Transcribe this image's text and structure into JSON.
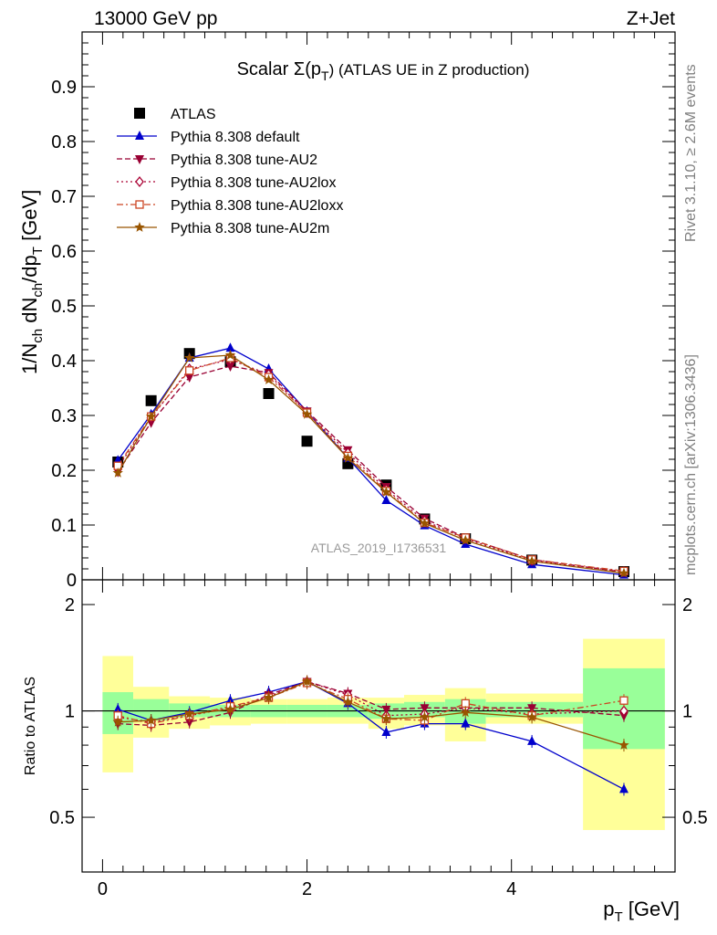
{
  "header": {
    "left": "13000 GeV pp",
    "right": "Z+Jet"
  },
  "side_labels": {
    "rivet": "Rivet 3.1.10, ≥ 2.6M events",
    "mcplots": "mcplots.cern.ch [arXiv:1306.3436]"
  },
  "chart_data": [
    {
      "type": "scatter",
      "title_prefix": "Scalar Σ(p",
      "title_sub": "T",
      "title_suffix": ") (ATLAS UE in Z production)",
      "ylabel": {
        "main": "1/N",
        "sub1": "ch",
        "mid": " dN",
        "sub2": "ch",
        "end": "/dp",
        "sub3": "T",
        "unit": " [GeV]"
      },
      "watermark": "ATLAS_2019_I1736531",
      "xlim": [
        -0.2,
        5.6
      ],
      "ylim": [
        0,
        1.0
      ],
      "yticks": [
        "0",
        "0.1",
        "0.2",
        "0.3",
        "0.4",
        "0.5",
        "0.6",
        "0.7",
        "0.8",
        "0.9",
        "1"
      ],
      "legend_position": "top-left",
      "x": [
        0.15,
        0.475,
        0.85,
        1.25,
        1.625,
        2.0,
        2.4,
        2.775,
        3.15,
        3.55,
        4.2,
        5.1
      ],
      "series": [
        {
          "name": "ATLAS",
          "style": "data",
          "color": "#000000",
          "values": [
            0.215,
            0.327,
            0.413,
            0.398,
            0.34,
            0.253,
            0.212,
            0.173,
            0.111,
            0.075,
            0.036,
            0.015
          ]
        },
        {
          "name": "Pythia 8.308 default",
          "style": "line",
          "color": "#0000cc",
          "marker": "triangle-up",
          "values": [
            0.218,
            0.302,
            0.405,
            0.423,
            0.385,
            0.307,
            0.222,
            0.145,
            0.099,
            0.065,
            0.028,
            0.009
          ]
        },
        {
          "name": "Pythia 8.308 tune-AU2",
          "style": "dashed",
          "color": "#990033",
          "marker": "triangle-down",
          "values": [
            0.197,
            0.287,
            0.37,
            0.39,
            0.378,
            0.308,
            0.237,
            0.17,
            0.112,
            0.077,
            0.037,
            0.014
          ]
        },
        {
          "name": "Pythia 8.308 tune-AU2lox",
          "style": "dotted",
          "color": "#aa0033",
          "marker": "diamond-open",
          "values": [
            0.205,
            0.296,
            0.385,
            0.402,
            0.375,
            0.305,
            0.232,
            0.165,
            0.108,
            0.075,
            0.035,
            0.015
          ]
        },
        {
          "name": "Pythia 8.308 tune-AU2loxx",
          "style": "dashdot",
          "color": "#cc4422",
          "marker": "square-open",
          "values": [
            0.208,
            0.298,
            0.382,
            0.405,
            0.37,
            0.305,
            0.226,
            0.162,
            0.104,
            0.077,
            0.037,
            0.016
          ]
        },
        {
          "name": "Pythia 8.308 tune-AU2m",
          "style": "line",
          "color": "#995500",
          "marker": "star",
          "values": [
            0.195,
            0.298,
            0.405,
            0.41,
            0.365,
            0.302,
            0.222,
            0.16,
            0.103,
            0.072,
            0.034,
            0.012
          ]
        }
      ]
    },
    {
      "type": "scatter",
      "ylabel": "Ratio to ATLAS",
      "xlabel_main": "p",
      "xlabel_sub": "T",
      "xlabel_unit": " [GeV]",
      "xlim": [
        -0.2,
        5.6
      ],
      "ylim": [
        0.35,
        2.35
      ],
      "yticks": [
        "0.5",
        "1",
        "2"
      ],
      "xticks": [
        "0",
        "2",
        "4"
      ],
      "bands": {
        "bin_edges": [
          0.0,
          0.3,
          0.65,
          1.05,
          1.45,
          1.8,
          2.2,
          2.6,
          2.95,
          3.35,
          3.75,
          4.7,
          5.5
        ],
        "yellow_lo": [
          0.67,
          0.84,
          0.89,
          0.91,
          0.92,
          0.92,
          0.92,
          0.89,
          0.91,
          0.82,
          0.92,
          0.46
        ],
        "yellow_hi": [
          1.43,
          1.17,
          1.1,
          1.09,
          1.08,
          1.08,
          1.09,
          1.09,
          1.11,
          1.16,
          1.12,
          1.6
        ],
        "green_lo": [
          0.86,
          0.94,
          0.96,
          0.96,
          0.96,
          0.96,
          0.96,
          0.95,
          0.96,
          0.92,
          0.96,
          0.78
        ],
        "green_hi": [
          1.13,
          1.08,
          1.05,
          1.04,
          1.04,
          1.04,
          1.04,
          1.05,
          1.06,
          1.08,
          1.06,
          1.32
        ]
      },
      "x": [
        0.15,
        0.475,
        0.85,
        1.25,
        1.625,
        2.0,
        2.4,
        2.775,
        3.15,
        3.55,
        4.2,
        5.1
      ],
      "series": [
        {
          "name": "Pythia 8.308 default",
          "style": "line",
          "color": "#0000cc",
          "marker": "triangle-up",
          "values": [
            1.01,
            0.94,
            0.99,
            1.07,
            1.13,
            1.21,
            1.05,
            0.87,
            0.92,
            0.92,
            0.82,
            0.6
          ]
        },
        {
          "name": "Pythia 8.308 tune-AU2",
          "style": "dashed",
          "color": "#990033",
          "marker": "triangle-down",
          "values": [
            0.92,
            0.91,
            0.93,
            0.99,
            1.11,
            1.21,
            1.12,
            1.01,
            1.02,
            1.02,
            1.02,
            0.97
          ]
        },
        {
          "name": "Pythia 8.308 tune-AU2lox",
          "style": "dotted",
          "color": "#aa0033",
          "marker": "diamond-open",
          "values": [
            0.96,
            0.93,
            0.97,
            1.02,
            1.1,
            1.21,
            1.11,
            0.97,
            0.98,
            1.02,
            0.98,
            1.0
          ]
        },
        {
          "name": "Pythia 8.308 tune-AU2loxx",
          "style": "dashdot",
          "color": "#cc4422",
          "marker": "square-open",
          "values": [
            0.97,
            0.92,
            0.97,
            1.03,
            1.09,
            1.2,
            1.08,
            0.95,
            0.94,
            1.05,
            0.97,
            1.07
          ]
        },
        {
          "name": "Pythia 8.308 tune-AU2m",
          "style": "line",
          "color": "#995500",
          "marker": "star",
          "values": [
            0.93,
            0.94,
            0.98,
            1.01,
            1.09,
            1.21,
            1.06,
            0.95,
            0.96,
            0.99,
            0.96,
            0.8
          ]
        }
      ]
    }
  ]
}
